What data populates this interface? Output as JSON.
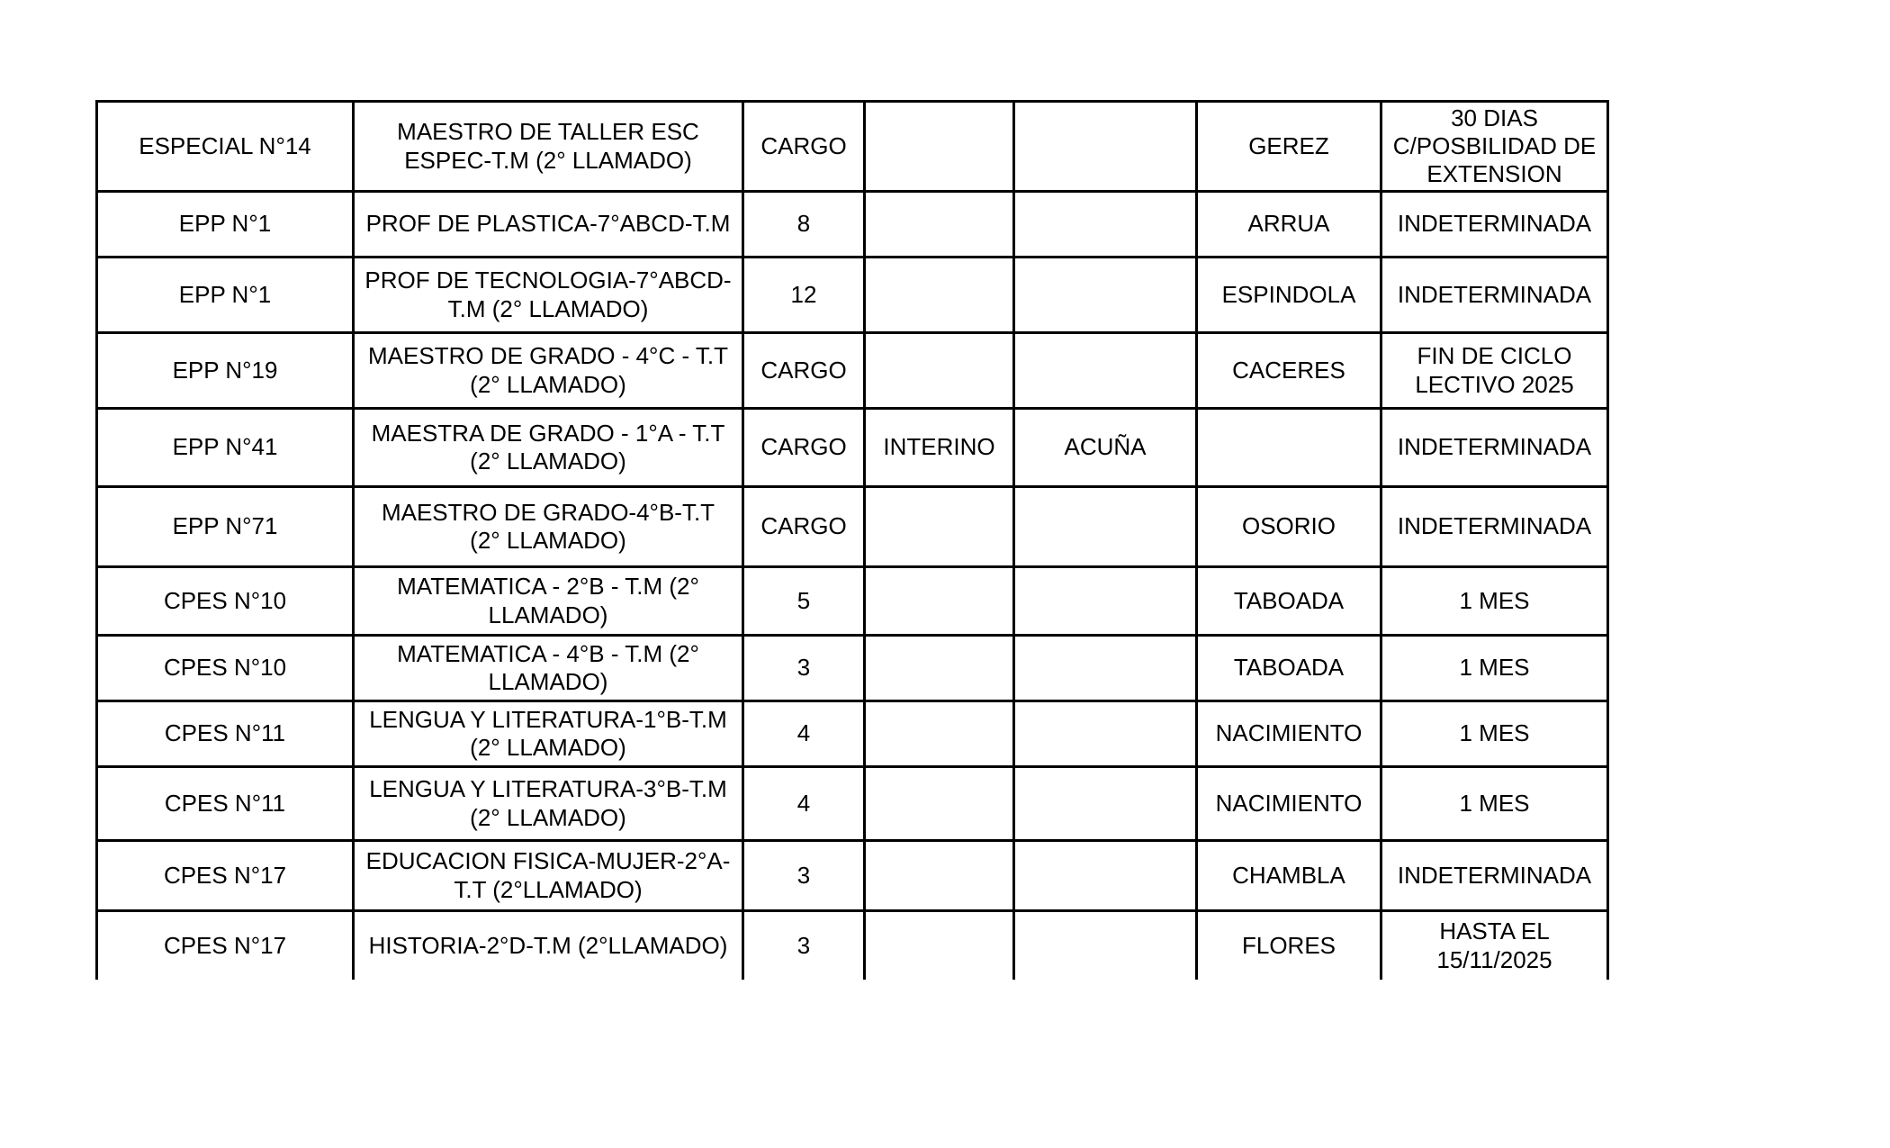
{
  "document": {
    "background": "#ffffff",
    "text_color": "#000000",
    "table_border_color": "#000000"
  },
  "table": {
    "column_roles": [
      "institution",
      "position",
      "workload",
      "condition",
      "candidate",
      "designated",
      "duration"
    ],
    "rows": [
      [
        "ESPECIAL N°14",
        "MAESTRO DE TALLER ESC ESPEC-T.M (2° LLAMADO)",
        "CARGO",
        "",
        "",
        "GEREZ",
        "30 DIAS C/POSBILIDAD DE EXTENSION"
      ],
      [
        "EPP N°1",
        "PROF DE PLASTICA-7°ABCD-T.M",
        "8",
        "",
        "",
        "ARRUA",
        "INDETERMINADA"
      ],
      [
        "EPP N°1",
        "PROF DE TECNOLOGIA-7°ABCD-T.M (2° LLAMADO)",
        "12",
        "",
        "",
        "ESPINDOLA",
        "INDETERMINADA"
      ],
      [
        "EPP N°19",
        "MAESTRO DE GRADO - 4°C - T.T (2° LLAMADO)",
        "CARGO",
        "",
        "",
        "CACERES",
        "FIN DE CICLO LECTIVO 2025"
      ],
      [
        "EPP N°41",
        "MAESTRA DE GRADO - 1°A - T.T (2° LLAMADO)",
        "CARGO",
        "INTERINO",
        "ACUÑA",
        "",
        "INDETERMINADA"
      ],
      [
        "EPP N°71",
        "MAESTRO DE GRADO-4°B-T.T (2° LLAMADO)",
        "CARGO",
        "",
        "",
        "OSORIO",
        "INDETERMINADA"
      ],
      [
        "CPES N°10",
        "MATEMATICA - 2°B - T.M (2° LLAMADO)",
        "5",
        "",
        "",
        "TABOADA",
        "1 MES"
      ],
      [
        "CPES N°10",
        "MATEMATICA - 4°B - T.M (2° LLAMADO)",
        "3",
        "",
        "",
        "TABOADA",
        "1 MES"
      ],
      [
        "CPES N°11",
        "LENGUA Y LITERATURA-1°B-T.M (2° LLAMADO)",
        "4",
        "",
        "",
        "NACIMIENTO",
        "1 MES"
      ],
      [
        "CPES N°11",
        "LENGUA Y LITERATURA-3°B-T.M (2° LLAMADO)",
        "4",
        "",
        "",
        "NACIMIENTO",
        "1 MES"
      ],
      [
        "CPES N°17",
        "EDUCACION FISICA-MUJER-2°A-T.T (2°LLAMADO)",
        "3",
        "",
        "",
        "CHAMBLA",
        "INDETERMINADA"
      ],
      [
        "CPES N°17",
        "HISTORIA-2°D-T.M (2°LLAMADO)",
        "3",
        "",
        "",
        "FLORES",
        "HASTA EL 15/11/2025"
      ]
    ]
  }
}
